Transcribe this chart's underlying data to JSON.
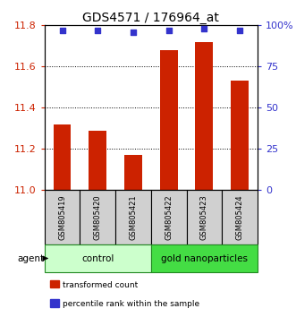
{
  "title": "GDS4571 / 176964_at",
  "samples": [
    "GSM805419",
    "GSM805420",
    "GSM805421",
    "GSM805422",
    "GSM805423",
    "GSM805424"
  ],
  "bar_values": [
    11.32,
    11.29,
    11.17,
    11.68,
    11.72,
    11.53
  ],
  "percentile_values": [
    97,
    97,
    96,
    97,
    98,
    97
  ],
  "ylim_left": [
    11.0,
    11.8
  ],
  "ylim_right": [
    0,
    100
  ],
  "yticks_left": [
    11.0,
    11.2,
    11.4,
    11.6,
    11.8
  ],
  "yticks_right": [
    0,
    25,
    50,
    75,
    100
  ],
  "ytick_labels_right": [
    "0",
    "25",
    "50",
    "75",
    "100%"
  ],
  "bar_color": "#cc2200",
  "dot_color": "#3333cc",
  "control_color": "#ccffcc",
  "nano_color": "#44dd44",
  "left_tick_color": "#cc2200",
  "right_tick_color": "#3333cc",
  "grid_color": "#000000",
  "control_label": "control",
  "nano_label": "gold nanoparticles",
  "agent_label": "agent",
  "legend_bar_label": "transformed count",
  "legend_dot_label": "percentile rank within the sample",
  "bar_width": 0.5,
  "sample_box_color": "#d0d0d0",
  "fig_width": 3.31,
  "fig_height": 3.54
}
